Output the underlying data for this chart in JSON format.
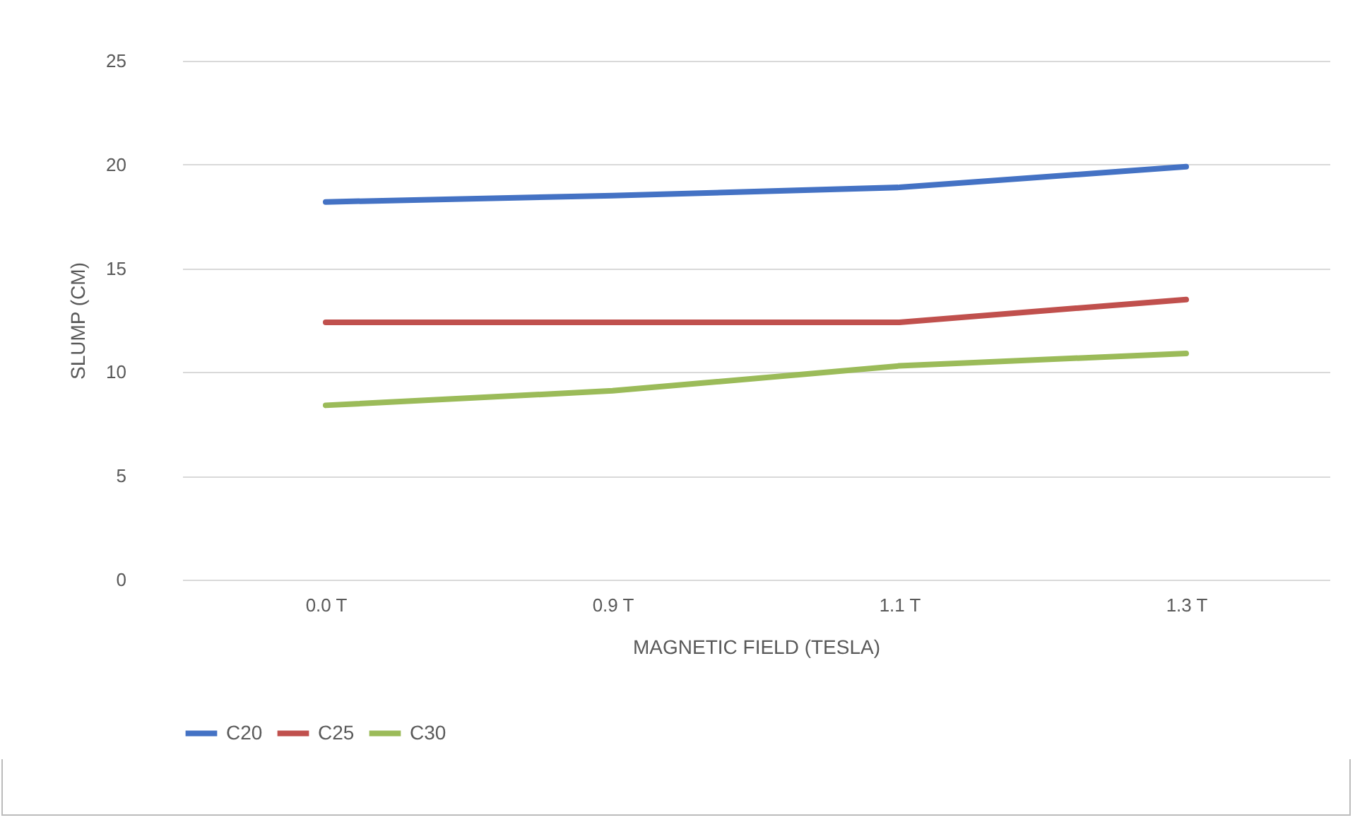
{
  "chart_data": {
    "type": "line",
    "xlabel": "MAGNETIC FIELD (TESLA)",
    "ylabel": "SLUMP (CM)",
    "categories": [
      "0.0 T",
      "0.9 T",
      "1.1 T",
      "1.3 T"
    ],
    "series": [
      {
        "name": "C20",
        "color": "#4472c4",
        "values": [
          18.2,
          18.5,
          18.9,
          19.9
        ]
      },
      {
        "name": "C25",
        "color": "#c0504d",
        "values": [
          12.4,
          12.4,
          12.4,
          13.5
        ]
      },
      {
        "name": "C30",
        "color": "#9bbb59",
        "values": [
          8.4,
          9.1,
          10.3,
          10.9
        ]
      }
    ],
    "ylim": [
      0,
      25
    ],
    "yticks": [
      0,
      5,
      10,
      15,
      20,
      25
    ],
    "grid": "y",
    "legend": "bottom",
    "marker": "none",
    "line_style": "solid"
  }
}
